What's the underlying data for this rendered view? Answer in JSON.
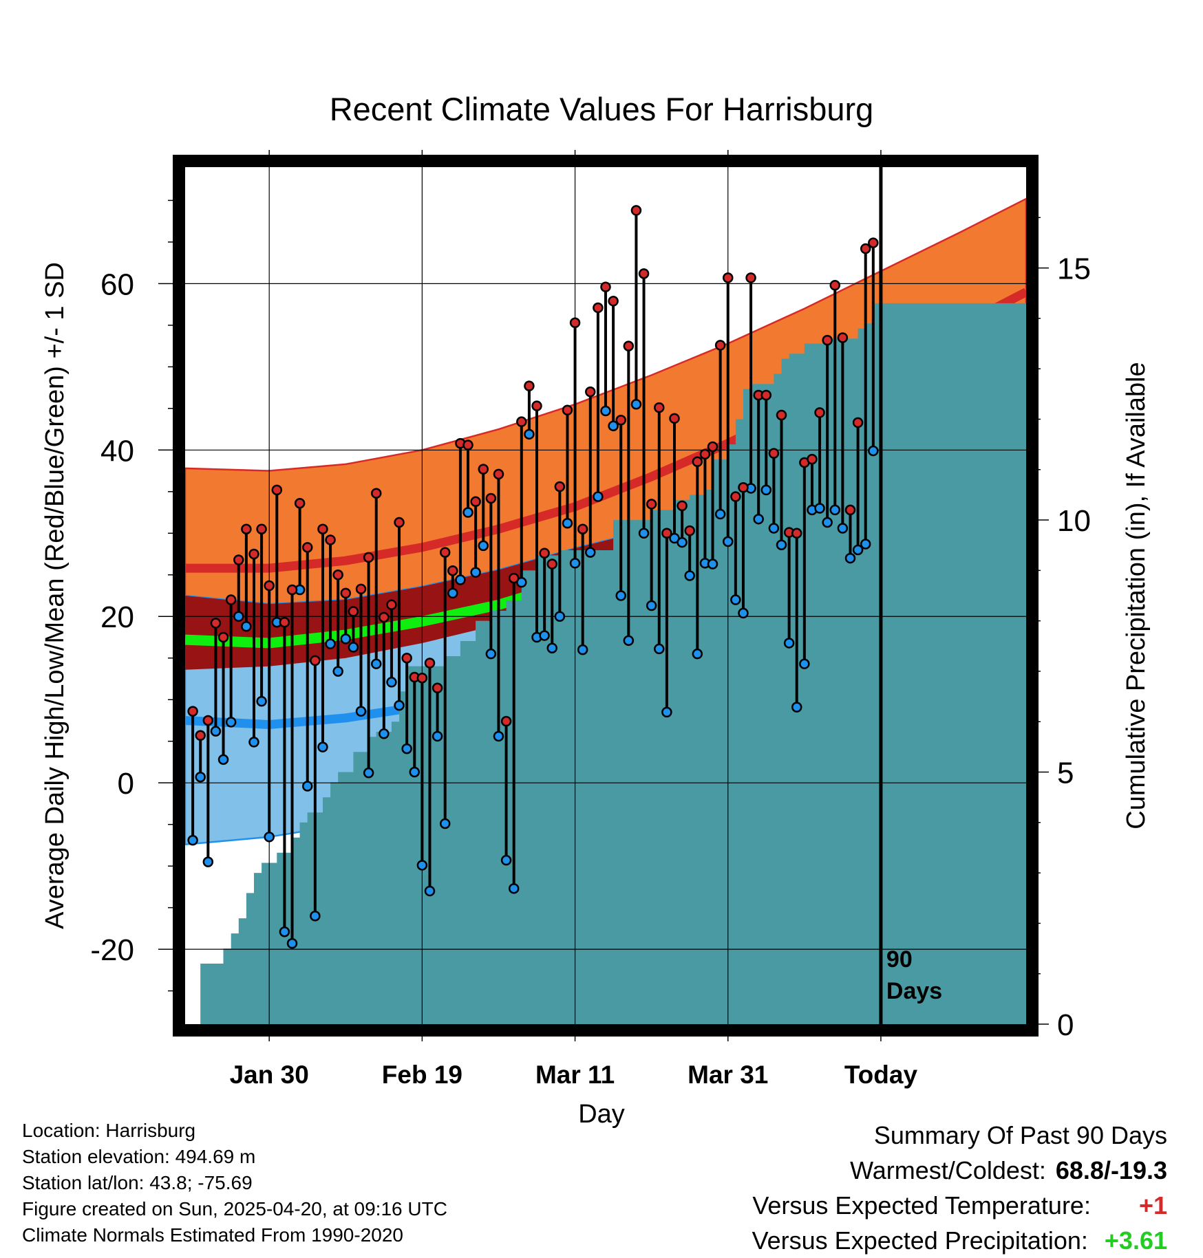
{
  "chart_data": {
    "type": "line",
    "title": "Recent Climate Values For Harrisburg",
    "xlabel": "Day",
    "ylabel": "Average Daily High/Low/Mean (Red/Blue/Green) +/- 1 SD",
    "y2label": "Cumulative Precipitation (in), If Available",
    "ylim": [
      -29,
      74
    ],
    "y2lim": [
      0,
      17
    ],
    "y_ticks": [
      "-20",
      "0",
      "20",
      "40",
      "60"
    ],
    "y_tick_values": [
      -20,
      0,
      20,
      40,
      60
    ],
    "y2_ticks": [
      "0",
      "5",
      "10",
      "15"
    ],
    "y2_tick_values": [
      0,
      5,
      10,
      15
    ],
    "x_range": [
      "2025-01-19",
      "2025-05-09"
    ],
    "x_ticks": [
      {
        "date": "2025-01-30",
        "label": "Jan 30"
      },
      {
        "date": "2025-02-19",
        "label": "Feb 19"
      },
      {
        "date": "2025-03-11",
        "label": "Mar 11"
      },
      {
        "date": "2025-03-31",
        "label": "Mar 31"
      },
      {
        "date": "2025-04-20",
        "label": "Today"
      }
    ],
    "today": "2025-04-20",
    "window_label": [
      "90",
      "Days"
    ],
    "grid": true,
    "normals": {
      "dates": [
        "2025-01-19",
        "2025-01-30",
        "2025-02-09",
        "2025-02-19",
        "2025-03-01",
        "2025-03-11",
        "2025-03-21",
        "2025-03-31",
        "2025-04-10",
        "2025-04-20",
        "2025-04-30",
        "2025-05-09"
      ],
      "high_plus_sd": [
        37.8,
        37.5,
        38.3,
        40.0,
        42.5,
        45.5,
        49.0,
        52.8,
        57.0,
        61.5,
        66.0,
        70.2
      ],
      "high_mean": [
        25.8,
        25.8,
        26.7,
        28.3,
        30.5,
        33.2,
        36.8,
        40.8,
        45.3,
        50.0,
        54.7,
        59.0
      ],
      "high_minus_sd": [
        13.6,
        14.0,
        15.0,
        16.8,
        19.0,
        21.8,
        25.2,
        29.0,
        33.5,
        38.5,
        43.2,
        47.5
      ],
      "mean": [
        17.2,
        16.8,
        17.8,
        19.4,
        21.4,
        24.2,
        27.7,
        31.8,
        36.3,
        41.5,
        46.5,
        51.0
      ],
      "low_plus_sd": [
        22.5,
        21.5,
        22.0,
        23.6,
        25.6,
        28.2,
        30.5,
        32.8,
        36.0,
        40.5,
        44.5,
        48.5
      ],
      "low_mean": [
        7.5,
        7.0,
        7.8,
        9.2,
        11.3,
        14.0,
        17.5,
        21.8,
        26.5,
        31.5,
        36.2,
        40.5
      ],
      "low_minus_sd": [
        -7.4,
        -6.5,
        -5.0,
        -3.5,
        -1.5,
        1.5,
        5.5,
        11.5,
        18.0,
        24.5,
        29.0,
        33.0
      ]
    },
    "series": [
      {
        "name": "High",
        "color": "#d42a2a",
        "x": [
          "2025-01-20",
          "2025-01-21",
          "2025-01-22",
          "2025-01-23",
          "2025-01-24",
          "2025-01-25",
          "2025-01-26",
          "2025-01-27",
          "2025-01-28",
          "2025-01-29",
          "2025-01-30",
          "2025-01-31",
          "2025-02-01",
          "2025-02-02",
          "2025-02-03",
          "2025-02-04",
          "2025-02-05",
          "2025-02-06",
          "2025-02-07",
          "2025-02-08",
          "2025-02-09",
          "2025-02-10",
          "2025-02-11",
          "2025-02-12",
          "2025-02-13",
          "2025-02-14",
          "2025-02-15",
          "2025-02-16",
          "2025-02-17",
          "2025-02-18",
          "2025-02-19",
          "2025-02-20",
          "2025-02-21",
          "2025-02-22",
          "2025-02-23",
          "2025-02-24",
          "2025-02-25",
          "2025-02-26",
          "2025-02-27",
          "2025-02-28",
          "2025-03-01",
          "2025-03-02",
          "2025-03-03",
          "2025-03-04",
          "2025-03-05",
          "2025-03-06",
          "2025-03-07",
          "2025-03-08",
          "2025-03-09",
          "2025-03-10",
          "2025-03-11",
          "2025-03-12",
          "2025-03-13",
          "2025-03-14",
          "2025-03-15",
          "2025-03-16",
          "2025-03-17",
          "2025-03-18",
          "2025-03-19",
          "2025-03-20",
          "2025-03-21",
          "2025-03-22",
          "2025-03-23",
          "2025-03-24",
          "2025-03-25",
          "2025-03-26",
          "2025-03-27",
          "2025-03-28",
          "2025-03-29",
          "2025-03-30",
          "2025-03-31",
          "2025-04-01",
          "2025-04-02",
          "2025-04-03",
          "2025-04-04",
          "2025-04-05",
          "2025-04-06",
          "2025-04-07",
          "2025-04-08",
          "2025-04-09",
          "2025-04-10",
          "2025-04-11",
          "2025-04-12",
          "2025-04-13",
          "2025-04-14",
          "2025-04-15",
          "2025-04-16",
          "2025-04-17",
          "2025-04-18",
          "2025-04-19"
        ],
        "values": [
          8.6,
          5.7,
          7.5,
          19.2,
          17.5,
          22.0,
          26.8,
          30.5,
          27.5,
          30.5,
          23.7,
          35.2,
          19.3,
          23.2,
          33.6,
          28.3,
          14.7,
          30.5,
          29.2,
          25.0,
          22.8,
          20.6,
          23.3,
          27.1,
          34.8,
          19.9,
          21.4,
          31.3,
          15.0,
          12.7,
          12.6,
          14.4,
          11.4,
          27.7,
          25.5,
          40.8,
          40.6,
          33.8,
          37.7,
          34.2,
          37.1,
          7.4,
          24.6,
          43.4,
          47.7,
          45.3,
          27.6,
          26.3,
          35.6,
          44.8,
          55.3,
          30.5,
          47.0,
          57.1,
          59.6,
          57.9,
          43.6,
          52.5,
          68.8,
          61.2,
          33.5,
          45.1,
          30.0,
          43.8,
          33.3,
          30.3,
          38.6,
          39.5,
          40.4,
          52.6,
          60.7,
          34.4,
          35.5,
          60.7,
          46.6,
          46.6,
          39.6,
          44.2,
          30.1,
          30.0,
          38.5,
          38.9,
          44.5,
          53.2,
          59.8,
          53.5,
          32.8,
          43.3,
          64.2,
          64.9
        ]
      },
      {
        "name": "Low",
        "color": "#1e90ee",
        "x": [
          "2025-01-20",
          "2025-01-21",
          "2025-01-22",
          "2025-01-23",
          "2025-01-24",
          "2025-01-25",
          "2025-01-26",
          "2025-01-27",
          "2025-01-28",
          "2025-01-29",
          "2025-01-30",
          "2025-01-31",
          "2025-02-01",
          "2025-02-02",
          "2025-02-03",
          "2025-02-04",
          "2025-02-05",
          "2025-02-06",
          "2025-02-07",
          "2025-02-08",
          "2025-02-09",
          "2025-02-10",
          "2025-02-11",
          "2025-02-12",
          "2025-02-13",
          "2025-02-14",
          "2025-02-15",
          "2025-02-16",
          "2025-02-17",
          "2025-02-18",
          "2025-02-19",
          "2025-02-20",
          "2025-02-21",
          "2025-02-22",
          "2025-02-23",
          "2025-02-24",
          "2025-02-25",
          "2025-02-26",
          "2025-02-27",
          "2025-02-28",
          "2025-03-01",
          "2025-03-02",
          "2025-03-03",
          "2025-03-04",
          "2025-03-05",
          "2025-03-06",
          "2025-03-07",
          "2025-03-08",
          "2025-03-09",
          "2025-03-10",
          "2025-03-11",
          "2025-03-12",
          "2025-03-13",
          "2025-03-14",
          "2025-03-15",
          "2025-03-16",
          "2025-03-17",
          "2025-03-18",
          "2025-03-19",
          "2025-03-20",
          "2025-03-21",
          "2025-03-22",
          "2025-03-23",
          "2025-03-24",
          "2025-03-25",
          "2025-03-26",
          "2025-03-27",
          "2025-03-28",
          "2025-03-29",
          "2025-03-30",
          "2025-03-31",
          "2025-04-01",
          "2025-04-02",
          "2025-04-03",
          "2025-04-04",
          "2025-04-05",
          "2025-04-06",
          "2025-04-07",
          "2025-04-08",
          "2025-04-09",
          "2025-04-10",
          "2025-04-11",
          "2025-04-12",
          "2025-04-13",
          "2025-04-14",
          "2025-04-15",
          "2025-04-16",
          "2025-04-17",
          "2025-04-18",
          "2025-04-19"
        ],
        "values": [
          -6.9,
          0.7,
          -9.5,
          6.2,
          2.8,
          7.3,
          20.0,
          18.8,
          4.9,
          9.8,
          -6.5,
          19.3,
          -17.9,
          -19.3,
          23.2,
          -0.4,
          -16.0,
          4.3,
          16.7,
          13.4,
          17.3,
          16.3,
          8.6,
          1.2,
          14.3,
          5.9,
          12.1,
          9.3,
          4.1,
          1.3,
          -9.9,
          -13.0,
          5.6,
          -4.9,
          22.8,
          24.4,
          32.5,
          25.3,
          28.5,
          15.5,
          5.6,
          -9.3,
          -12.7,
          24.1,
          41.9,
          17.5,
          17.7,
          16.2,
          20.0,
          31.2,
          26.4,
          16.0,
          27.7,
          34.4,
          44.7,
          42.9,
          22.5,
          17.1,
          45.5,
          30.0,
          21.3,
          16.1,
          8.5,
          29.4,
          28.9,
          24.9,
          15.5,
          26.4,
          26.3,
          32.3,
          29.0,
          22.0,
          20.4,
          35.4,
          31.7,
          35.2,
          30.6,
          28.6,
          16.8,
          9.1,
          14.3,
          32.8,
          33.0,
          31.3,
          32.8,
          30.6,
          27.0,
          28.0,
          28.7,
          39.9
        ]
      }
    ],
    "precip": {
      "name": "Cumulative Precipitation",
      "color": "#4a9aa3",
      "x": [
        "2025-01-20",
        "2025-01-21",
        "2025-01-24",
        "2025-01-25",
        "2025-01-26",
        "2025-01-27",
        "2025-01-28",
        "2025-01-29",
        "2025-01-31",
        "2025-02-02",
        "2025-02-03",
        "2025-02-04",
        "2025-02-06",
        "2025-02-07",
        "2025-02-08",
        "2025-02-10",
        "2025-02-12",
        "2025-02-13",
        "2025-02-15",
        "2025-02-16",
        "2025-02-17",
        "2025-02-20",
        "2025-02-22",
        "2025-02-24",
        "2025-02-26",
        "2025-02-28",
        "2025-03-02",
        "2025-03-04",
        "2025-03-06",
        "2025-03-09",
        "2025-03-14",
        "2025-03-16",
        "2025-03-18",
        "2025-03-21",
        "2025-03-24",
        "2025-03-26",
        "2025-03-28",
        "2025-03-29",
        "2025-03-31",
        "2025-04-01",
        "2025-04-02",
        "2025-04-03",
        "2025-04-06",
        "2025-04-07",
        "2025-04-08",
        "2025-04-10",
        "2025-04-11",
        "2025-04-13",
        "2025-04-14",
        "2025-04-17",
        "2025-04-18",
        "2025-04-19"
      ],
      "values": [
        0.0,
        1.2,
        1.5,
        1.8,
        2.1,
        2.6,
        3.0,
        3.2,
        3.4,
        3.7,
        4.0,
        4.2,
        4.5,
        4.8,
        5.0,
        5.4,
        5.7,
        5.8,
        6.0,
        6.6,
        7.1,
        7.1,
        7.3,
        7.6,
        8.0,
        8.2,
        8.4,
        9.0,
        9.3,
        9.4,
        9.4,
        10.0,
        10.0,
        10.2,
        10.4,
        10.5,
        10.6,
        11.2,
        11.5,
        12.0,
        12.6,
        12.7,
        12.9,
        13.2,
        13.3,
        13.5,
        13.5,
        13.6,
        13.6,
        13.8,
        13.9,
        14.3
      ]
    },
    "colors": {
      "high_band": "#f27a30",
      "high_line": "#d62a28",
      "overlap_band": "#981414",
      "low_band": "#81c0e8",
      "low_line": "#2090ee",
      "mean_line": "#10ee10",
      "precip": "#4a9aa3"
    }
  },
  "footer": {
    "location": "Location: Harrisburg",
    "elevation": "Station elevation: 494.69 m",
    "latlon": "Station lat/lon: 43.8; -75.69",
    "created": "Figure created on Sun, 2025-04-20, at 09:16 UTC",
    "normals": "Climate Normals Estimated From 1990-2020"
  },
  "summary": {
    "title": "Summary Of Past 90 Days",
    "warmest_label": "Warmest/Coldest:",
    "warmest_value": "68.8/-19.3",
    "temp_label": "Versus Expected Temperature:",
    "temp_value": "+1",
    "temp_color": "#d42a2a",
    "precip_label": "Versus Expected Precipitation:",
    "precip_value": "+3.61",
    "precip_color": "#22cc22"
  }
}
